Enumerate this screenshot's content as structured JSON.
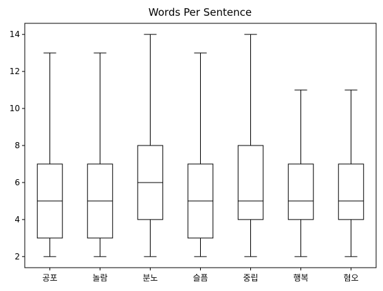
{
  "chart_data": {
    "type": "boxplot",
    "title": "Words Per Sentence",
    "xlabel": "",
    "ylabel": "",
    "categories": [
      "공포",
      "놀람",
      "분노",
      "슬픔",
      "중립",
      "행복",
      "혐오"
    ],
    "boxes": [
      {
        "whisker_low": 2,
        "q1": 3,
        "median": 5,
        "q3": 7,
        "whisker_high": 13
      },
      {
        "whisker_low": 2,
        "q1": 3,
        "median": 5,
        "q3": 7,
        "whisker_high": 13
      },
      {
        "whisker_low": 2,
        "q1": 4,
        "median": 6,
        "q3": 8,
        "whisker_high": 14
      },
      {
        "whisker_low": 2,
        "q1": 3,
        "median": 5,
        "q3": 7,
        "whisker_high": 13
      },
      {
        "whisker_low": 2,
        "q1": 4,
        "median": 5,
        "q3": 8,
        "whisker_high": 14
      },
      {
        "whisker_low": 2,
        "q1": 4,
        "median": 5,
        "q3": 7,
        "whisker_high": 11
      },
      {
        "whisker_low": 2,
        "q1": 4,
        "median": 5,
        "q3": 7,
        "whisker_high": 11
      }
    ],
    "ylim": [
      1.4,
      14.6
    ],
    "yticks": [
      2,
      4,
      6,
      8,
      10,
      12,
      14
    ],
    "grid": false,
    "colors": {
      "stroke": "#000000",
      "box_fill": "#ffffff"
    }
  }
}
